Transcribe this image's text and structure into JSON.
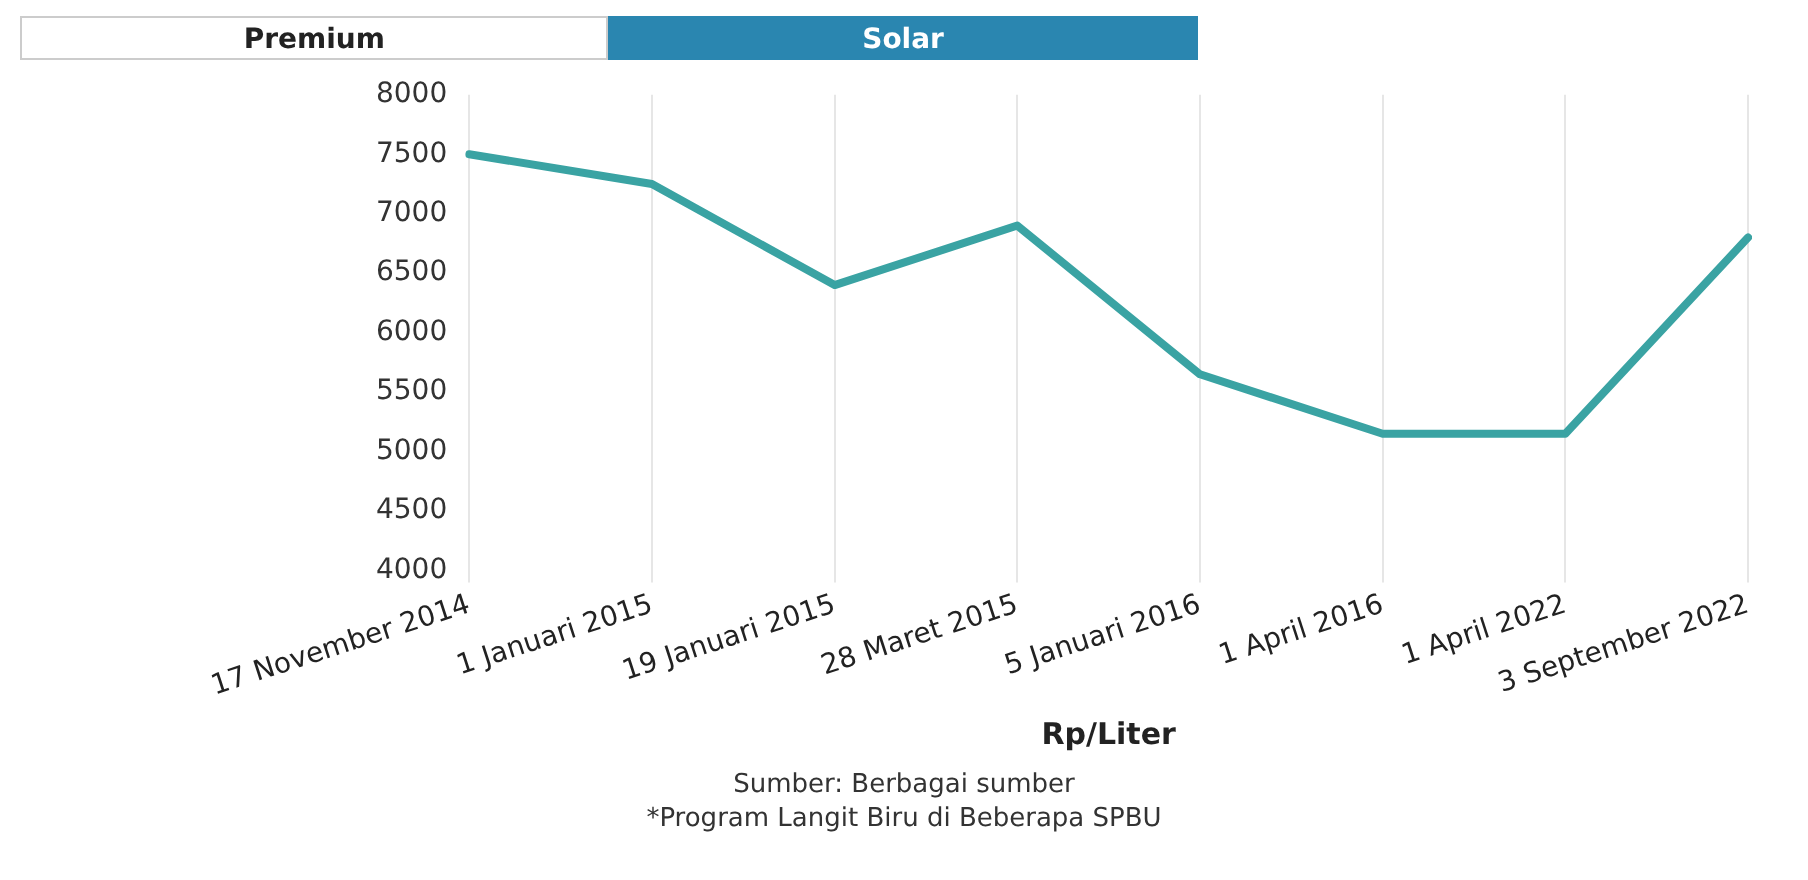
{
  "chart_data": {
    "type": "line",
    "title": "Solar",
    "xlabel": "Rp/Liter",
    "annotations": [
      "Premium",
      "Sumber: Berbagai sumber",
      "*Program Langit Biru di Beberapa SPBU"
    ],
    "categories": [
      "17 November 2014",
      "1 Januari 2015",
      "19 Januari 2015",
      "28 Maret 2015",
      "5 Januari 2016",
      "1 April 2016",
      "1 April 2022",
      "3 September 2022"
    ],
    "series": [
      {
        "color": "#3aa3a3",
        "values": [
          7500,
          7250,
          6400,
          6900,
          5650,
          5150,
          5150,
          6800
        ]
      }
    ],
    "ylim": [
      4000,
      8000
    ],
    "yticks": [
      4000,
      4500,
      5000,
      5500,
      6000,
      6500,
      7000,
      7500,
      8000
    ],
    "grid": "x",
    "legend": false,
    "marker": "none",
    "line_style": "solid"
  }
}
